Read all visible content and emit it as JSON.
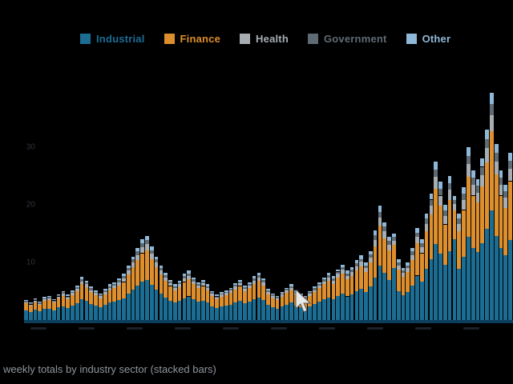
{
  "caption": "weekly totals by industry sector (stacked bars)",
  "colors": {
    "background": "#000000",
    "baseline": "#0b3f5d",
    "axis_tick_text": "#2e343b",
    "caption_text": "#8f959d",
    "cursor": "#e8e8e8"
  },
  "legend": {
    "position": "top",
    "items": [
      {
        "label": "Industrial",
        "color": "#1b6d94"
      },
      {
        "label": "Finance",
        "color": "#dd8e2d"
      },
      {
        "label": "Health",
        "color": "#a8adb2"
      },
      {
        "label": "Government",
        "color": "#5f6b74"
      },
      {
        "label": "Other",
        "color": "#8fb8d8"
      }
    ]
  },
  "chart_data": {
    "type": "bar",
    "stacked": true,
    "title": "",
    "xlabel": "",
    "ylabel": "",
    "ylim": [
      0,
      40
    ],
    "yticks": [
      10,
      20,
      30
    ],
    "grid": false,
    "legend_position": "top",
    "bar_count": 105,
    "series": [
      {
        "name": "Industrial",
        "color": "#1b6d94",
        "values": [
          1.7,
          1.4,
          1.8,
          1.5,
          1.9,
          2.0,
          1.7,
          2.2,
          2.4,
          2.1,
          2.5,
          2.9,
          3.6,
          3.3,
          2.8,
          2.5,
          2.2,
          2.6,
          3.0,
          3.2,
          3.5,
          3.8,
          4.6,
          5.3,
          6.0,
          6.7,
          7.0,
          6.1,
          5.3,
          4.6,
          3.9,
          3.4,
          3.0,
          3.3,
          3.8,
          4.1,
          3.6,
          3.2,
          3.4,
          3.0,
          2.4,
          2.1,
          2.3,
          2.5,
          2.7,
          3.1,
          3.4,
          2.9,
          3.2,
          3.6,
          3.9,
          3.5,
          2.6,
          2.2,
          2.0,
          2.3,
          2.7,
          3.0,
          2.5,
          2.2,
          2.0,
          2.4,
          2.8,
          3.2,
          3.6,
          3.9,
          3.6,
          4.2,
          4.6,
          4.1,
          4.4,
          5.0,
          5.4,
          4.8,
          5.8,
          7.4,
          9.5,
          8.2,
          7.0,
          9.0,
          5.0,
          4.3,
          4.8,
          6.0,
          7.7,
          6.7,
          8.9,
          10.6,
          13.2,
          11.5,
          9.6,
          12.0,
          14.0,
          8.9,
          11.0,
          14.4,
          12.5,
          11.8,
          13.4,
          15.8,
          19.0,
          14.6,
          12.5,
          11.3,
          13.9
        ]
      },
      {
        "name": "Finance",
        "color": "#dd8e2d",
        "values": [
          1.2,
          1.1,
          1.3,
          1.1,
          1.4,
          1.5,
          1.3,
          1.6,
          1.8,
          1.5,
          1.8,
          2.1,
          2.6,
          2.4,
          2.0,
          1.8,
          1.6,
          1.9,
          2.2,
          2.3,
          2.5,
          2.8,
          3.3,
          3.9,
          4.4,
          4.9,
          5.1,
          4.5,
          3.9,
          3.3,
          2.9,
          2.5,
          2.2,
          2.4,
          2.8,
          3.0,
          2.6,
          2.3,
          2.5,
          2.2,
          1.8,
          1.5,
          1.7,
          1.8,
          2.0,
          2.2,
          2.5,
          2.1,
          2.3,
          2.7,
          2.9,
          2.5,
          1.9,
          1.6,
          1.5,
          1.7,
          2.0,
          2.2,
          1.8,
          1.6,
          1.5,
          1.8,
          2.0,
          2.3,
          2.6,
          2.9,
          2.7,
          3.1,
          3.4,
          3.0,
          3.2,
          3.6,
          3.9,
          3.5,
          4.2,
          5.4,
          6.9,
          6.0,
          5.1,
          4.0,
          3.7,
          3.2,
          3.5,
          4.4,
          5.6,
          4.9,
          6.5,
          7.7,
          9.6,
          8.4,
          7.0,
          8.8,
          5.0,
          6.5,
          8.1,
          10.5,
          9.1,
          8.6,
          9.8,
          11.6,
          13.8,
          10.7,
          9.1,
          8.2,
          10.2
        ]
      },
      {
        "name": "Health",
        "color": "#a8adb2",
        "values": [
          0.2,
          0.2,
          0.3,
          0.2,
          0.3,
          0.3,
          0.2,
          0.3,
          0.4,
          0.3,
          0.4,
          0.4,
          0.5,
          0.5,
          0.4,
          0.4,
          0.4,
          0.4,
          0.4,
          0.5,
          0.5,
          0.6,
          0.7,
          0.8,
          0.9,
          1.0,
          1.1,
          0.9,
          0.8,
          0.7,
          0.6,
          0.5,
          0.4,
          0.5,
          0.6,
          0.6,
          0.5,
          0.5,
          0.5,
          0.4,
          0.4,
          0.3,
          0.4,
          0.4,
          0.4,
          0.5,
          0.5,
          0.4,
          0.5,
          0.5,
          0.6,
          0.5,
          0.4,
          0.4,
          0.3,
          0.4,
          0.4,
          0.4,
          0.4,
          0.4,
          0.3,
          0.4,
          0.4,
          0.5,
          0.5,
          0.6,
          0.5,
          0.7,
          0.7,
          0.6,
          0.7,
          0.7,
          0.8,
          0.7,
          0.8,
          1.1,
          1.4,
          1.2,
          1.0,
          0.8,
          0.8,
          0.7,
          0.7,
          0.9,
          1.1,
          1.0,
          1.3,
          1.6,
          2.0,
          1.7,
          1.4,
          1.8,
          1.1,
          1.3,
          1.7,
          2.2,
          1.9,
          1.7,
          2.0,
          2.4,
          2.8,
          2.2,
          1.9,
          1.7,
          2.1
        ]
      },
      {
        "name": "Government",
        "color": "#5f6b74",
        "values": [
          0.2,
          0.2,
          0.2,
          0.2,
          0.2,
          0.2,
          0.2,
          0.2,
          0.2,
          0.2,
          0.2,
          0.3,
          0.4,
          0.3,
          0.3,
          0.2,
          0.2,
          0.2,
          0.3,
          0.3,
          0.4,
          0.4,
          0.4,
          0.5,
          0.6,
          0.7,
          0.7,
          0.6,
          0.5,
          0.4,
          0.4,
          0.3,
          0.3,
          0.3,
          0.4,
          0.4,
          0.4,
          0.3,
          0.3,
          0.3,
          0.2,
          0.2,
          0.2,
          0.2,
          0.3,
          0.3,
          0.3,
          0.3,
          0.3,
          0.4,
          0.4,
          0.4,
          0.2,
          0.2,
          0.2,
          0.2,
          0.3,
          0.3,
          0.2,
          0.2,
          0.2,
          0.2,
          0.3,
          0.3,
          0.4,
          0.4,
          0.4,
          0.4,
          0.5,
          0.4,
          0.4,
          0.5,
          0.5,
          0.5,
          0.6,
          0.8,
          1.0,
          0.8,
          0.7,
          0.6,
          0.5,
          0.4,
          0.5,
          0.6,
          0.8,
          0.7,
          0.9,
          1.0,
          1.3,
          1.2,
          1.0,
          1.2,
          0.7,
          0.9,
          1.1,
          1.4,
          1.2,
          1.2,
          1.4,
          1.6,
          1.9,
          1.5,
          1.2,
          1.1,
          1.4
        ]
      },
      {
        "name": "Other",
        "color": "#8fb8d8",
        "values": [
          0.2,
          0.1,
          0.2,
          0.2,
          0.2,
          0.2,
          0.2,
          0.2,
          0.2,
          0.3,
          0.3,
          0.3,
          0.4,
          0.3,
          0.3,
          0.3,
          0.2,
          0.3,
          0.3,
          0.3,
          0.3,
          0.4,
          0.5,
          0.5,
          0.6,
          0.7,
          0.7,
          0.7,
          0.5,
          0.5,
          0.4,
          0.3,
          0.3,
          0.3,
          0.4,
          0.5,
          0.3,
          0.3,
          0.3,
          0.3,
          0.2,
          0.3,
          0.2,
          0.3,
          0.2,
          0.3,
          0.3,
          0.3,
          0.3,
          0.4,
          0.4,
          0.3,
          0.3,
          0.2,
          0.2,
          0.2,
          0.2,
          0.3,
          0.3,
          0.2,
          0.2,
          0.2,
          0.3,
          0.3,
          0.3,
          0.4,
          0.4,
          0.4,
          0.4,
          0.5,
          0.5,
          0.6,
          0.6,
          0.5,
          0.6,
          0.8,
          1.0,
          0.8,
          0.7,
          0.6,
          0.5,
          0.4,
          0.5,
          0.6,
          0.8,
          0.7,
          0.9,
          1.1,
          1.4,
          1.2,
          1.0,
          1.2,
          0.7,
          0.9,
          1.1,
          1.5,
          1.3,
          1.2,
          1.4,
          1.6,
          2.0,
          1.5,
          1.3,
          1.2,
          1.4
        ]
      }
    ]
  }
}
